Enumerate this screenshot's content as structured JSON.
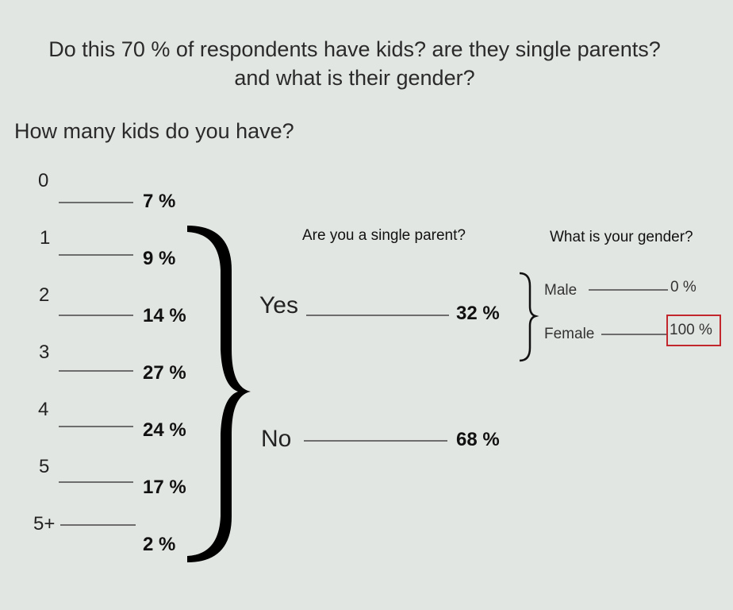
{
  "header": {
    "title_line1": "Do this 70 %  of respondents have kids? are they single parents?",
    "title_line2": "and what is their gender?"
  },
  "kids": {
    "question": "How many kids do you have?",
    "items": [
      {
        "label": "0",
        "percent": "7 %"
      },
      {
        "label": "1",
        "percent": "9 %"
      },
      {
        "label": "2",
        "percent": "14 %"
      },
      {
        "label": "3",
        "percent": "27 %"
      },
      {
        "label": "4",
        "percent": "24 %"
      },
      {
        "label": "5",
        "percent": "17 %"
      },
      {
        "label": "5+",
        "percent": "2 %"
      }
    ]
  },
  "single_parent": {
    "question": "Are you a single parent?",
    "yes_label": "Yes",
    "yes_percent": "32 %",
    "no_label": "No",
    "no_percent": "68 %"
  },
  "gender": {
    "question": "What is your gender?",
    "male_label": "Male",
    "male_percent": "0 %",
    "female_label": "Female",
    "female_percent": "100 %",
    "highlight_color": "#c1272d"
  }
}
